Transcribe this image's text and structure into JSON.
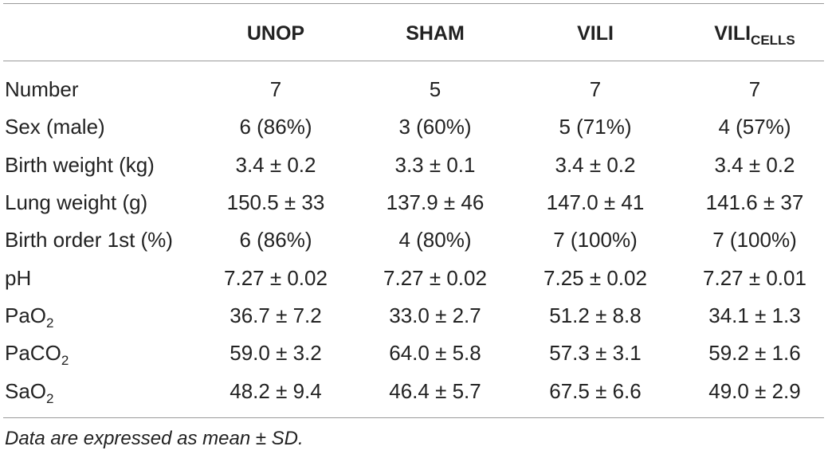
{
  "table": {
    "columns": [
      "UNOP",
      "SHAM",
      "VILI"
    ],
    "vili_cells": {
      "base": "VILI",
      "sub": "CELLS"
    },
    "rows": [
      {
        "label": "Number",
        "values": [
          "7",
          "5",
          "7",
          "7"
        ]
      },
      {
        "label": "Sex (male)",
        "values": [
          "6 (86%)",
          "3 (60%)",
          "5 (71%)",
          "4 (57%)"
        ]
      },
      {
        "label": "Birth weight (kg)",
        "values": [
          "3.4 ± 0.2",
          "3.3 ± 0.1",
          "3.4 ± 0.2",
          "3.4 ± 0.2"
        ]
      },
      {
        "label": "Lung weight (g)",
        "values": [
          "150.5 ± 33",
          "137.9 ± 46",
          "147.0 ± 41",
          "141.6 ± 37"
        ]
      },
      {
        "label": "Birth order 1st (%)",
        "values": [
          "6 (86%)",
          "4 (80%)",
          "7 (100%)",
          "7 (100%)"
        ]
      },
      {
        "label": "pH",
        "values": [
          "7.27 ± 0.02",
          "7.27 ± 0.02",
          "7.25 ± 0.02",
          "7.27 ± 0.01"
        ]
      },
      {
        "label": "PaO",
        "label_sub": "2",
        "values": [
          "36.7 ± 7.2",
          "33.0 ± 2.7",
          "51.2 ± 8.8",
          "34.1 ± 1.3"
        ]
      },
      {
        "label": "PaCO",
        "label_sub": "2",
        "values": [
          "59.0 ± 3.2",
          "64.0 ± 5.8",
          "57.3 ± 3.1",
          "59.2 ± 1.6"
        ]
      },
      {
        "label": "SaO",
        "label_sub": "2",
        "values": [
          "48.2 ± 9.4",
          "46.4 ± 5.7",
          "67.5 ± 6.6",
          "49.0 ± 2.9"
        ]
      }
    ],
    "footnote": "Data are expressed as mean ± SD."
  }
}
